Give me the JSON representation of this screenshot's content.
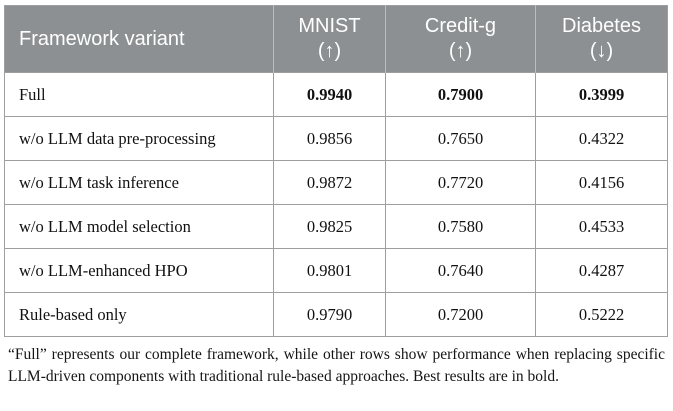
{
  "table": {
    "columns": [
      {
        "label": "Framework variant",
        "arrow": ""
      },
      {
        "label": "MNIST",
        "arrow": "(↑)",
        "arrow_name": "up-arrow-icon"
      },
      {
        "label": "Credit-g",
        "arrow": "(↑)",
        "arrow_name": "up-arrow-icon"
      },
      {
        "label": "Diabetes",
        "arrow": "(↓)",
        "arrow_name": "down-arrow-icon"
      }
    ],
    "rows": [
      {
        "variant": "Full",
        "values": [
          "0.9940",
          "0.7900",
          "0.3999"
        ],
        "best": true
      },
      {
        "variant": "w/o LLM data pre-processing",
        "values": [
          "0.9856",
          "0.7650",
          "0.4322"
        ],
        "best": false
      },
      {
        "variant": "w/o LLM task inference",
        "values": [
          "0.9872",
          "0.7720",
          "0.4156"
        ],
        "best": false
      },
      {
        "variant": "w/o LLM model selection",
        "values": [
          "0.9825",
          "0.7580",
          "0.4533"
        ],
        "best": false
      },
      {
        "variant": "w/o LLM-enhanced HPO",
        "values": [
          "0.9801",
          "0.7640",
          "0.4287"
        ],
        "best": false
      },
      {
        "variant": "Rule-based only",
        "values": [
          "0.9790",
          "0.7200",
          "0.5222"
        ],
        "best": false
      }
    ]
  },
  "caption": {
    "text": "“Full” represents our complete framework, while other rows show performance when replacing specific LLM-driven components with traditional rule-based approaches. Best results are in bold."
  },
  "colors": {
    "header_bg": "#8c9093",
    "header_text": "#ffffff",
    "header_divider": "#babdbf",
    "body_border": "#9c9ea0",
    "body_text": "#111111"
  }
}
